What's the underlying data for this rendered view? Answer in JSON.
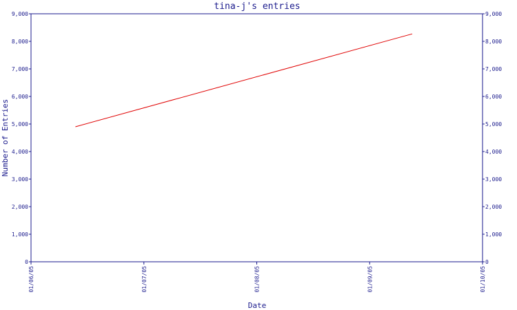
{
  "chart_data": {
    "type": "line",
    "title": "tina-j's entries",
    "xlabel": "Date",
    "ylabel": "Number of Entries",
    "x_ticks": [
      "01/06/05",
      "01/07/05",
      "01/08/05",
      "01/09/05",
      "01/10/05"
    ],
    "y_ticks": [
      "0",
      "1,000",
      "2,000",
      "3,000",
      "4,000",
      "5,000",
      "6,000",
      "7,000",
      "8,000",
      "9,000"
    ],
    "xlim": [
      "2005-06-01",
      "2005-10-01"
    ],
    "ylim": [
      0,
      9000
    ],
    "grid": false,
    "series": [
      {
        "x": [
          "2005-06-13",
          "2005-09-12"
        ],
        "y": [
          4900,
          8270
        ]
      }
    ],
    "colors": {
      "axis": "#1a1a8c",
      "line": "#e00000",
      "text": "#1a1a8c"
    }
  }
}
